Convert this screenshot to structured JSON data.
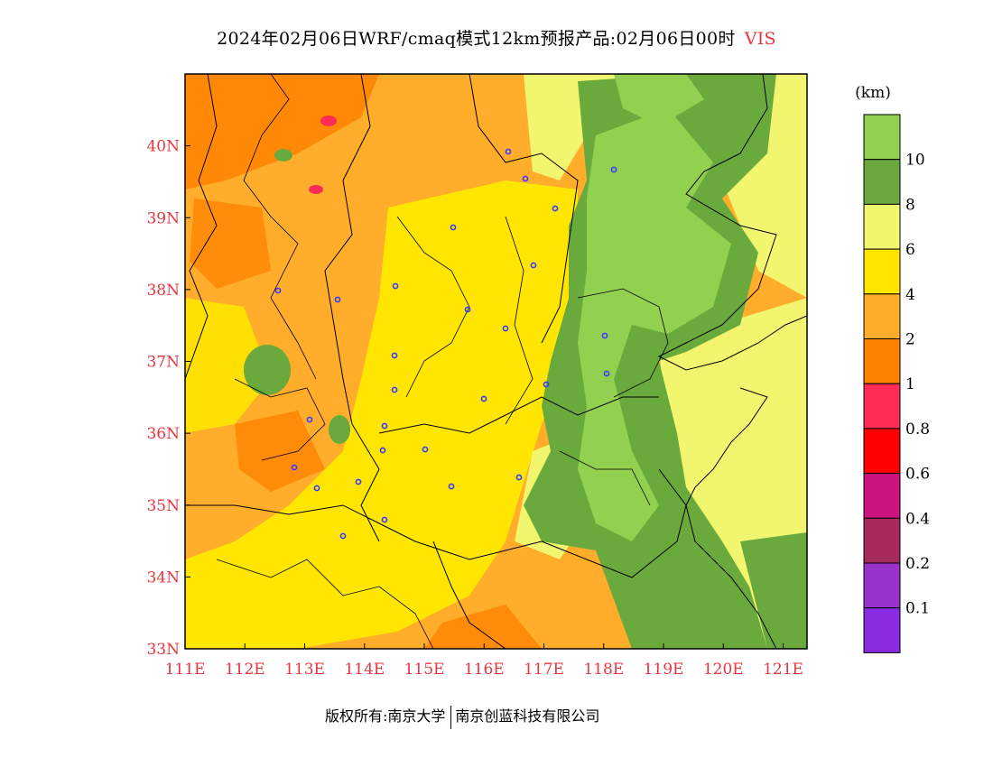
{
  "title": {
    "main": "2024年02月06日WRF/cmaq模式12km预报产品:02月06日00时",
    "variable": "VIS"
  },
  "map": {
    "lon_range": [
      111,
      121.4
    ],
    "lat_range": [
      33,
      41
    ],
    "x_ticks": [
      "111E",
      "112E",
      "113E",
      "114E",
      "115E",
      "116E",
      "117E",
      "118E",
      "119E",
      "120E",
      "121E"
    ],
    "y_ticks": [
      "33N",
      "34N",
      "35N",
      "36N",
      "37N",
      "38N",
      "39N",
      "40N"
    ],
    "tick_color": "#e8353f"
  },
  "colorbar": {
    "unit": "(km)",
    "colors_top_to_bottom": [
      "#92d050",
      "#6aaa3c",
      "#f2f66e",
      "#ffe600",
      "#ffad2a",
      "#ff8200",
      "#ff2d55",
      "#ff0000",
      "#cc1480",
      "#a62b5c",
      "#9933cc",
      "#8a2be2"
    ],
    "labels_top_to_bottom": [
      "10",
      "8",
      "6",
      "4",
      "2",
      "1",
      "0.8",
      "0.6",
      "0.4",
      "0.2",
      "0.1"
    ]
  },
  "footer": {
    "left": "版权所有:南京大学",
    "right": "南京创蓝科技有限公司"
  }
}
